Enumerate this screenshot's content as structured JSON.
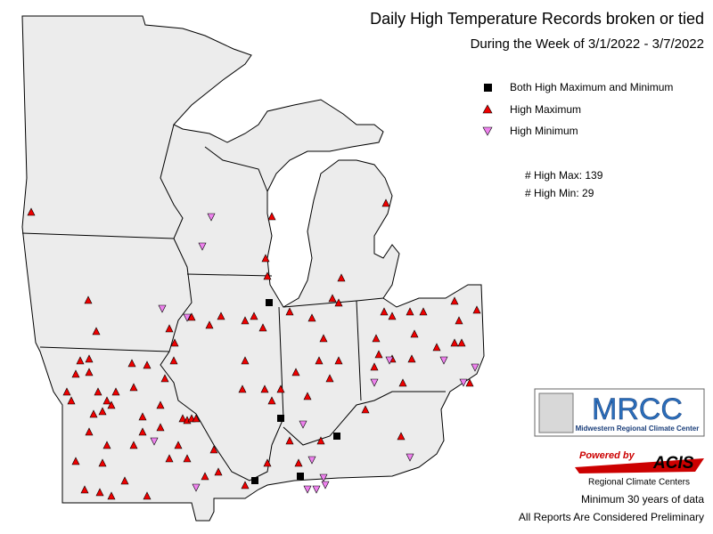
{
  "title": "Daily High Temperature Records broken or tied",
  "subtitle": "During the Week of 3/1/2022 - 3/7/2022",
  "legend": [
    "Both High Maximum and Minimum",
    "High Maximum",
    "High Minimum"
  ],
  "stats": [
    "# High Max: 139",
    "# High Min: 29"
  ],
  "logos": {
    "mrcc": "MRCC",
    "mrcc_name": "Midwestern Regional Climate Center",
    "powered_by": "Powered by",
    "acis": "ACIS",
    "acis_name": "Regional Climate Centers"
  },
  "notes": [
    "Minimum 30 years of data",
    "All Reports Are Considered Preliminary"
  ]
}
